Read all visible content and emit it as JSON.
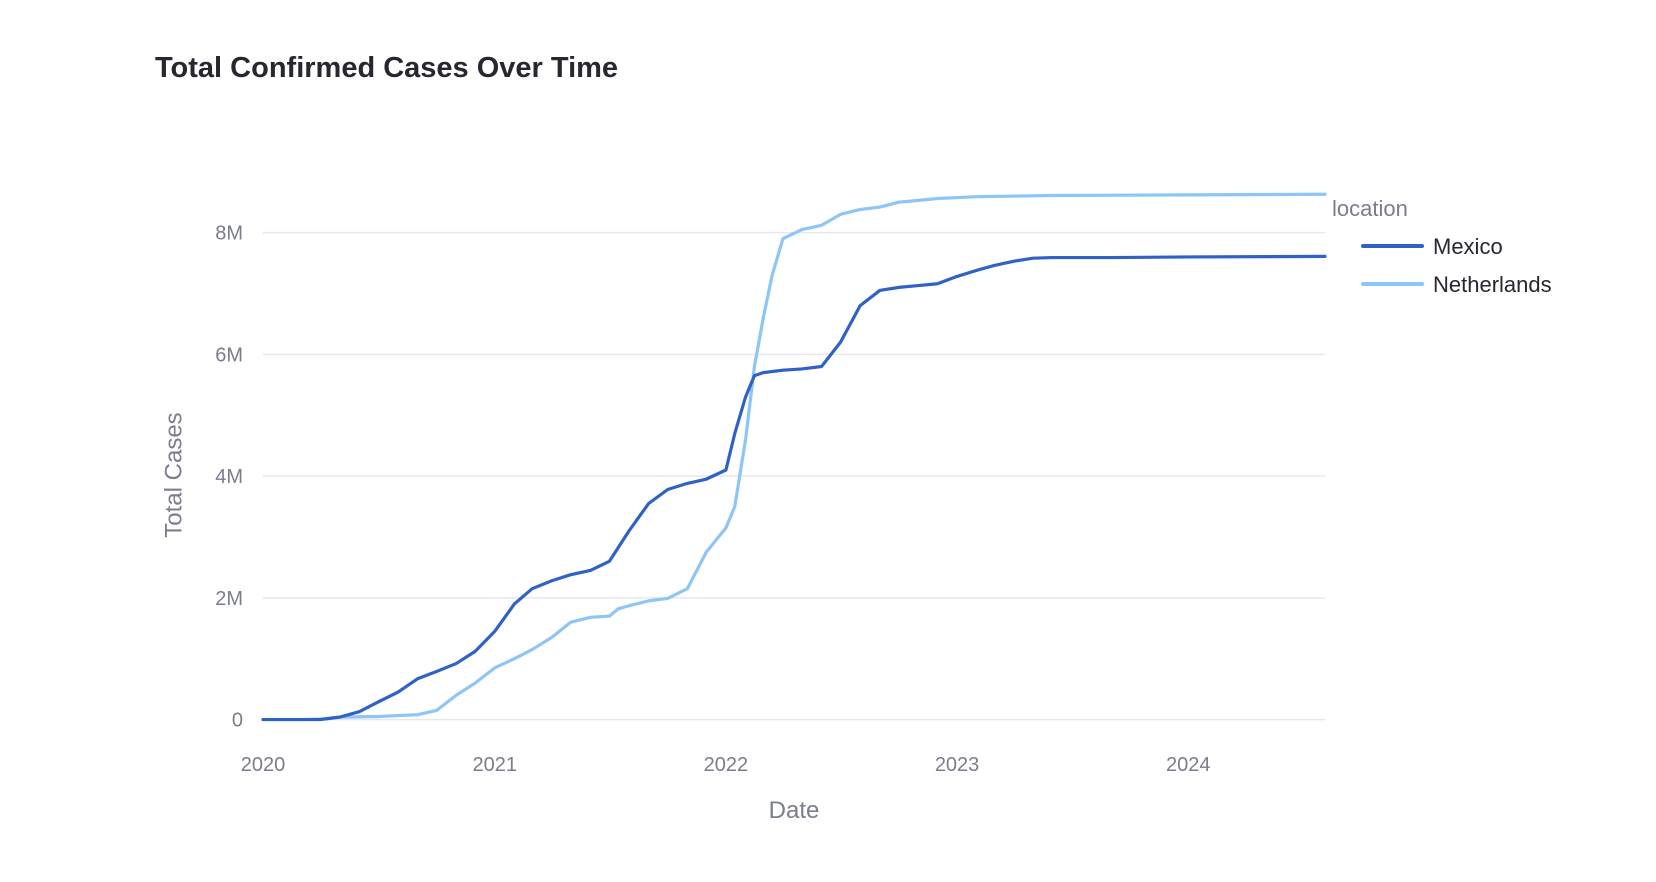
{
  "chart_data": {
    "type": "line",
    "title": "Total Confirmed Cases Over Time",
    "xlabel": "Date",
    "ylabel": "Total Cases",
    "x_ticks": [
      "2020",
      "2021",
      "2022",
      "2023",
      "2024"
    ],
    "y_ticks": [
      "0",
      "2M",
      "4M",
      "6M",
      "8M"
    ],
    "y_tick_values": [
      0,
      2000000,
      4000000,
      6000000,
      8000000
    ],
    "xlim": [
      "2020-01-01",
      "2024-08-04"
    ],
    "ylim": [
      -500000,
      8700000
    ],
    "grid": "horizontal",
    "legend": {
      "title": "location",
      "placement": "top-right"
    },
    "series": [
      {
        "name": "Mexico",
        "color": "#2f62c4",
        "points": [
          [
            "2020-01-01",
            0
          ],
          [
            "2020-04-01",
            0
          ],
          [
            "2020-05-01",
            40000
          ],
          [
            "2020-06-01",
            130000
          ],
          [
            "2020-07-01",
            290000
          ],
          [
            "2020-08-01",
            450000
          ],
          [
            "2020-09-01",
            670000
          ],
          [
            "2020-10-01",
            790000
          ],
          [
            "2020-11-01",
            920000
          ],
          [
            "2020-12-01",
            1120000
          ],
          [
            "2021-01-01",
            1450000
          ],
          [
            "2021-02-01",
            1900000
          ],
          [
            "2021-03-01",
            2150000
          ],
          [
            "2021-04-01",
            2280000
          ],
          [
            "2021-05-01",
            2380000
          ],
          [
            "2021-06-01",
            2450000
          ],
          [
            "2021-07-01",
            2600000
          ],
          [
            "2021-08-01",
            3100000
          ],
          [
            "2021-09-01",
            3550000
          ],
          [
            "2021-10-01",
            3780000
          ],
          [
            "2021-11-01",
            3880000
          ],
          [
            "2021-12-01",
            3950000
          ],
          [
            "2022-01-01",
            4100000
          ],
          [
            "2022-01-15",
            4700000
          ],
          [
            "2022-02-01",
            5300000
          ],
          [
            "2022-02-15",
            5650000
          ],
          [
            "2022-03-01",
            5700000
          ],
          [
            "2022-04-01",
            5740000
          ],
          [
            "2022-05-01",
            5760000
          ],
          [
            "2022-06-01",
            5800000
          ],
          [
            "2022-07-01",
            6200000
          ],
          [
            "2022-08-01",
            6800000
          ],
          [
            "2022-09-01",
            7050000
          ],
          [
            "2022-10-01",
            7100000
          ],
          [
            "2022-11-01",
            7130000
          ],
          [
            "2022-12-01",
            7160000
          ],
          [
            "2023-01-01",
            7280000
          ],
          [
            "2023-02-01",
            7380000
          ],
          [
            "2023-03-01",
            7460000
          ],
          [
            "2023-04-01",
            7530000
          ],
          [
            "2023-05-01",
            7580000
          ],
          [
            "2023-06-01",
            7590000
          ],
          [
            "2023-09-01",
            7590000
          ],
          [
            "2024-01-01",
            7600000
          ],
          [
            "2024-08-04",
            7610000
          ]
        ]
      },
      {
        "name": "Netherlands",
        "color": "#8ec5f7",
        "points": [
          [
            "2020-01-01",
            0
          ],
          [
            "2020-03-01",
            0
          ],
          [
            "2020-04-01",
            10000
          ],
          [
            "2020-05-01",
            40000
          ],
          [
            "2020-07-01",
            50000
          ],
          [
            "2020-09-01",
            80000
          ],
          [
            "2020-10-01",
            150000
          ],
          [
            "2020-11-01",
            400000
          ],
          [
            "2020-12-01",
            600000
          ],
          [
            "2021-01-01",
            850000
          ],
          [
            "2021-02-01",
            1000000
          ],
          [
            "2021-03-01",
            1150000
          ],
          [
            "2021-04-01",
            1350000
          ],
          [
            "2021-05-01",
            1600000
          ],
          [
            "2021-06-01",
            1680000
          ],
          [
            "2021-07-01",
            1700000
          ],
          [
            "2021-07-15",
            1820000
          ],
          [
            "2021-08-01",
            1870000
          ],
          [
            "2021-09-01",
            1950000
          ],
          [
            "2021-10-01",
            1990000
          ],
          [
            "2021-11-01",
            2150000
          ],
          [
            "2021-12-01",
            2750000
          ],
          [
            "2022-01-01",
            3150000
          ],
          [
            "2022-01-15",
            3500000
          ],
          [
            "2022-02-01",
            4600000
          ],
          [
            "2022-02-15",
            5800000
          ],
          [
            "2022-03-01",
            6600000
          ],
          [
            "2022-03-15",
            7300000
          ],
          [
            "2022-04-01",
            7900000
          ],
          [
            "2022-05-01",
            8050000
          ],
          [
            "2022-06-01",
            8120000
          ],
          [
            "2022-07-01",
            8300000
          ],
          [
            "2022-08-01",
            8380000
          ],
          [
            "2022-09-01",
            8420000
          ],
          [
            "2022-10-01",
            8500000
          ],
          [
            "2022-11-01",
            8530000
          ],
          [
            "2022-12-01",
            8560000
          ],
          [
            "2023-02-01",
            8590000
          ],
          [
            "2023-06-01",
            8610000
          ],
          [
            "2024-01-01",
            8620000
          ],
          [
            "2024-08-04",
            8630000
          ]
        ]
      }
    ]
  }
}
